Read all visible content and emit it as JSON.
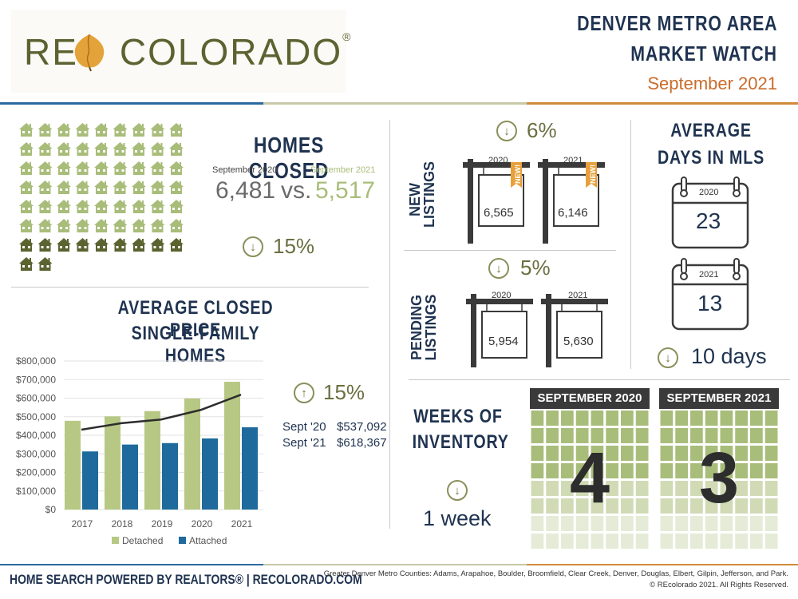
{
  "header": {
    "logo_pre": "RE",
    "logo_post": "COLORADO",
    "logo_reg": "®",
    "title_line1": "DENVER METRO AREA",
    "title_line2": "MARKET WATCH",
    "period": "September 2021"
  },
  "homes_closed": {
    "title": "HOMES CLOSED",
    "label_2020": "September 2020",
    "label_2021": "September 2021",
    "value_2020": "6,481",
    "vs": "vs.",
    "value_2021": "5,517",
    "change": "15%",
    "direction": "down",
    "icon_rows_full": 6,
    "icon_cols": 9,
    "icon_row_dark": 9,
    "icon_last_row": 2
  },
  "new_listings": {
    "label": "NEW\nLISTINGS",
    "label_line1": "NEW",
    "label_line2": "LISTINGS",
    "change": "6%",
    "direction": "down",
    "year_2020": "2020",
    "year_2021": "2021",
    "value_2020": "6,565",
    "value_2021": "6,146",
    "badge": "NEW!"
  },
  "pending_listings": {
    "label_line1": "PENDING",
    "label_line2": "LISTINGS",
    "change": "5%",
    "direction": "down",
    "year_2020": "2020",
    "year_2021": "2021",
    "value_2020": "5,954",
    "value_2021": "5,630"
  },
  "days_in_mls": {
    "title_line1": "AVERAGE",
    "title_line2": "DAYS IN MLS",
    "year_2020": "2020",
    "year_2021": "2021",
    "value_2020": "23",
    "value_2021": "13",
    "change": "10 days",
    "direction": "down"
  },
  "weeks_inventory": {
    "title_line1": "WEEKS OF",
    "title_line2": "INVENTORY",
    "change": "1 week",
    "direction": "down",
    "panel_2020_title": "SEPTEMBER 2020",
    "panel_2021_title": "SEPTEMBER 2021",
    "value_2020": "4",
    "value_2021": "3"
  },
  "price": {
    "title_line1": "AVERAGE CLOSED PRICE",
    "title_line2": "SINGLE-FAMILY HOMES",
    "change": "15%",
    "direction": "up",
    "label_2020": "Sept '20",
    "label_2021": "Sept '21",
    "value_2020": "$537,092",
    "value_2021": "$618,367"
  },
  "chart_data": {
    "type": "bar",
    "categories": [
      "2017",
      "2018",
      "2019",
      "2020",
      "2021"
    ],
    "series": [
      {
        "name": "Detached",
        "values": [
          478000,
          502000,
          530000,
          598000,
          688000
        ],
        "color": "#b7c884"
      },
      {
        "name": "Attached",
        "values": [
          313000,
          350000,
          358000,
          383000,
          443000
        ],
        "color": "#1e6a9c"
      }
    ],
    "line": {
      "values": [
        430000,
        465000,
        485000,
        537092,
        618367
      ],
      "color": "#2d2d2d"
    },
    "ylim": [
      0,
      800000
    ],
    "yticks": [
      "$800,000",
      "$700,000",
      "$600,000",
      "$500,000",
      "$400,000",
      "$300,000",
      "$200,000",
      "$100,000",
      "$0"
    ],
    "legend_position": "bottom",
    "grid": true
  },
  "footer": {
    "left": "HOME SEARCH POWERED BY REALTORS® | RECOLORADO.COM",
    "counties": "Greater Denver Metro Counties: Adams, Arapahoe, Boulder, Broomfield, Clear Creek, Denver, Douglas, Elbert, Gilpin, Jefferson, and Park.",
    "copyright": "© REcolorado 2021. All Rights Reserved."
  },
  "colors": {
    "navy": "#1f3350",
    "olive": "#6b6f40",
    "light_green": "#a9bd7a",
    "orange": "#c96b2b",
    "house_light": "#a9bd7a",
    "house_dark": "#5b6330"
  }
}
